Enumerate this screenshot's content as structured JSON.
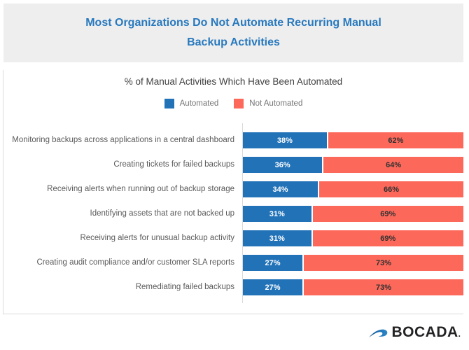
{
  "header": {
    "title": "Most Organizations Do Not Automate Recurring Manual Backup Activities"
  },
  "chart": {
    "title": "% of Manual Activities Which Have Been Automated",
    "legend": [
      {
        "label": "Automated",
        "color": "#2272B8"
      },
      {
        "label": "Not Automated",
        "color": "#FC695B"
      }
    ]
  },
  "chart_data": {
    "type": "bar",
    "orientation": "horizontal",
    "stacked": true,
    "title": "% of Manual Activities Which Have Been Automated",
    "categories": [
      "Monitoring backups across applications in a central dashboard",
      "Creating tickets for failed backups",
      "Receiving alerts when running out of backup storage",
      "Identifying assets that are not backed up",
      "Receiving alerts for unusual backup activity",
      "Creating audit compliance and/or customer SLA reports",
      "Remediating failed backups"
    ],
    "series": [
      {
        "name": "Automated",
        "color": "#2272B8",
        "values": [
          38,
          36,
          34,
          31,
          31,
          27,
          27
        ]
      },
      {
        "name": "Not Automated",
        "color": "#FC695B",
        "values": [
          62,
          64,
          66,
          69,
          69,
          73,
          73
        ]
      }
    ],
    "value_suffix": "%",
    "xlim": [
      0,
      100
    ],
    "legend_position": "top",
    "grid": false
  },
  "footer": {
    "brand": "BOCADA",
    "brand_suffix": "."
  },
  "colors": {
    "header_bg": "#EEEEEE",
    "header_text": "#2879BE",
    "automated": "#2272B8",
    "not_automated": "#FC695B",
    "axis_line": "#D9D9D9"
  }
}
